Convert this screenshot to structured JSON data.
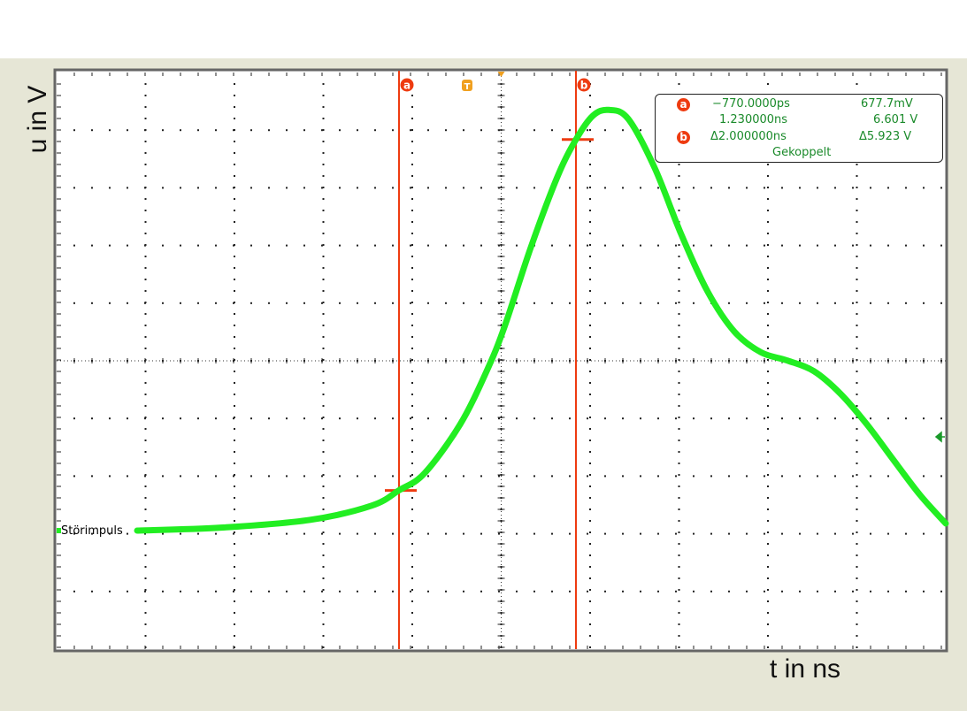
{
  "chart_data": {
    "type": "line",
    "xlabel": "t in ns",
    "ylabel": "u in V",
    "grid": true,
    "x_per_div": "1 ns",
    "y_per_div": "1 V",
    "xlim": [
      -4.64,
      5.41
    ],
    "ylim": [
      -2.0,
      7.8
    ],
    "series": [
      {
        "name": "Störimpuls",
        "color": "#22ee22",
        "x": [
          -3.73,
          -2.78,
          -1.78,
          -1.08,
          -0.77,
          -0.48,
          -0.08,
          0.22,
          0.42,
          0.72,
          1.02,
          1.23,
          1.42,
          1.6,
          1.82,
          2.12,
          2.42,
          2.72,
          3.02,
          3.32,
          3.62,
          3.92,
          4.22,
          4.52,
          4.82,
          5.12,
          5.41
        ],
        "y": [
          0.0,
          0.05,
          0.18,
          0.42,
          0.68,
          0.97,
          1.79,
          2.69,
          3.43,
          4.78,
          5.97,
          6.6,
          7.0,
          7.1,
          6.95,
          6.12,
          5.0,
          4.03,
          3.36,
          3.01,
          2.87,
          2.69,
          2.31,
          1.79,
          1.19,
          0.6,
          0.12
        ]
      }
    ],
    "cursors": [
      {
        "label": "a",
        "t": -0.77,
        "u": 0.6777,
        "color": "#ee3b10"
      },
      {
        "label": "b",
        "t": 1.23,
        "u": 6.601,
        "color": "#ee3b10"
      }
    ],
    "trigger_marker": "T",
    "trigger_color": "#f0a020"
  },
  "readout": {
    "a_label": "a",
    "b_label": "b",
    "a_time": "−770.0000ps",
    "a_volt": "677.7mV",
    "b_time": "1.230000ns",
    "b_volt": "6.601 V",
    "delta_time": "Δ2.000000ns",
    "delta_volt": "Δ5.923 V",
    "coupling": "Gekoppelt"
  }
}
